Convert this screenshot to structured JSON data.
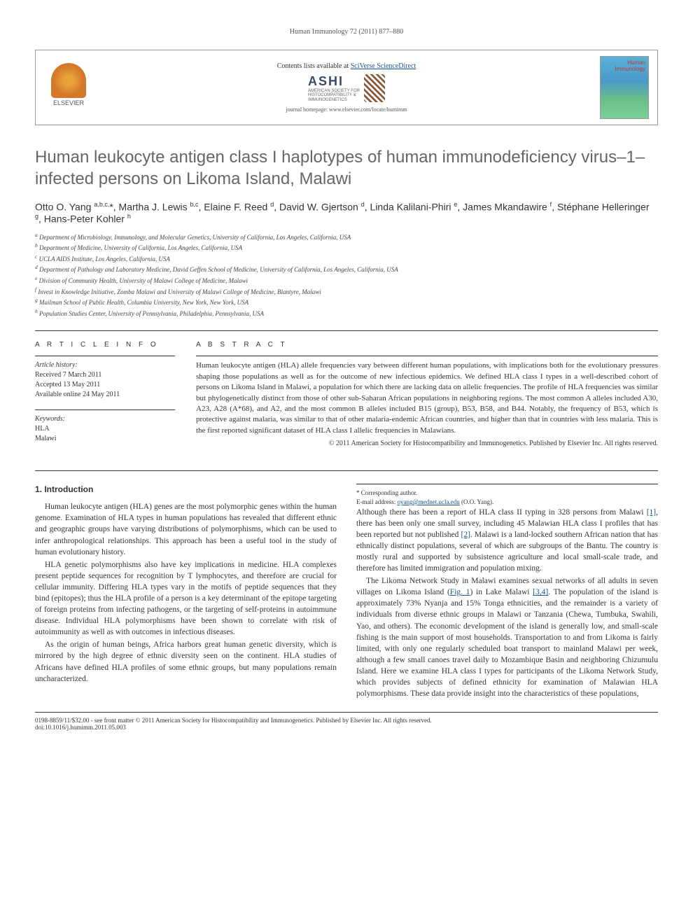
{
  "running_head": "Human Immunology 72 (2011) 877–880",
  "header": {
    "elsevier_label": "ELSEVIER",
    "contents_prefix": "Contents lists available at ",
    "contents_link": "SciVerse ScienceDirect",
    "ashi_name": "ASHI",
    "ashi_sub1": "AMERICAN SOCIETY FOR",
    "ashi_sub2": "HISTOCOMPATIBILITY &",
    "ashi_sub3": "IMMUNOGENETICS",
    "homepage": "journal homepage: www.elsevier.com/locate/humimm",
    "cover_title1": "Human",
    "cover_title2": "Immunology"
  },
  "title": "Human leukocyte antigen class I haplotypes of human immunodeficiency virus–1–infected persons on Likoma Island, Malawi",
  "authors_html": "Otto O. Yang <sup>a,b,c,</sup>*, Martha J. Lewis <sup>b,c</sup>, Elaine F. Reed <sup>d</sup>, David W. Gjertson <sup>d</sup>, Linda Kalilani-Phiri <sup>e</sup>, James Mkandawire <sup>f</sup>, Stéphane Helleringer <sup>g</sup>, Hans-Peter Kohler <sup>h</sup>",
  "affiliations": [
    "a Department of Microbiology, Immunology, and Molecular Genetics, University of California, Los Angeles, California, USA",
    "b Department of Medicine, University of California, Los Angeles, California, USA",
    "c UCLA AIDS Institute, Los Angeles, California, USA",
    "d Department of Pathology and Laboratory Medicine, David Geffen School of Medicine, University of California, Los Angeles, California, USA",
    "e Division of Community Health, University of Malawi College of Medicine, Malawi",
    "f Invest in Knowledge Initiative, Zomba Malawi and University of Malawi College of Medicine, Blantyre, Malawi",
    "g Mailman School of Public Health, Columbia University, New York, New York, USA",
    "h Population Studies Center, University of Pennsylvania, Philadelphia, Pennsylvania, USA"
  ],
  "article_info": {
    "label": "A R T I C L E   I N F O",
    "history_label": "Article history:",
    "received": "Received 7 March 2011",
    "accepted": "Accepted 13 May 2011",
    "online": "Available online 24 May 2011",
    "keywords_label": "Keywords:",
    "kw1": "HLA",
    "kw2": "Malawi"
  },
  "abstract": {
    "label": "A B S T R A C T",
    "text": "Human leukocyte antigen (HLA) allele frequencies vary between different human populations, with implications both for the evolutionary pressures shaping those populations as well as for the outcome of new infectious epidemics. We defined HLA class I types in a well-described cohort of persons on Likoma Island in Malawi, a population for which there are lacking data on allelic frequencies. The profile of HLA frequencies was similar but phylogenetically distinct from those of other sub-Saharan African populations in neighboring regions. The most common A alleles included A30, A23, A28 (A*68), and A2, and the most common B alleles included B15 (group), B53, B58, and B44. Notably, the frequency of B53, which is protective against malaria, was similar to that of other malaria-endemic African countries, and higher than that in countries with less malaria. This is the first reported significant dataset of HLA class I allelic frequencies in Malawians.",
    "copyright": "© 2011 American Society for Histocompatibility and Immunogenetics. Published by Elsevier Inc. All rights reserved."
  },
  "body": {
    "heading1": "1. Introduction",
    "p1": "Human leukocyte antigen (HLA) genes are the most polymorphic genes within the human genome. Examination of HLA types in human populations has revealed that different ethnic and geographic groups have varying distributions of polymorphisms, which can be used to infer anthropological relationships. This approach has been a useful tool in the study of human evolutionary history.",
    "p2": "HLA genetic polymorphisms also have key implications in medicine. HLA complexes present peptide sequences for recognition by T lymphocytes, and therefore are crucial for cellular immunity. Differing HLA types vary in the motifs of peptide sequences that they bind (epitopes); thus the HLA profile of a person is a key determinant of the epitope targeting of foreign proteins from infecting pathogens, or the targeting of self-proteins in autoimmune disease. Individual HLA polymorphisms have been shown to correlate with risk of autoimmunity as well as with outcomes in infectious diseases.",
    "p3": "As the origin of human beings, Africa harbors great human genetic diversity, which is mirrored by the high degree of ethnic diversity seen on the continent. HLA studies of Africans have defined HLA profiles of some ethnic groups, but many populations remain uncharacterized.",
    "p4a": "Although there has been a report of HLA class II typing in 328 persons from Malawi ",
    "ref1": "[1]",
    "p4b": ", there has been only one small survey, including 45 Malawian HLA class I profiles that has been reported but not published ",
    "ref2": "[2]",
    "p4c": ". Malawi is a land-locked southern African nation that has ethnically distinct populations, several of which are subgroups of the Bantu. The country is mostly rural and supported by subsistence agriculture and local small-scale trade, and therefore has limited immigration and population mixing.",
    "p5a": "The Likoma Network Study in Malawi examines sexual networks of all adults in seven villages on Likoma Island (",
    "fig1": "Fig. 1",
    "p5b": ") in Lake Malawi ",
    "ref34": "[3,4]",
    "p5c": ". The population of the island is approximately 73% Nyanja and 15% Tonga ethnicities, and the remainder is a variety of individuals from diverse ethnic groups in Malawi or Tanzania (Chewa, Tumbuka, Swahili, Yao, and others). The economic development of the island is generally low, and small-scale fishing is the main support of most households. Transportation to and from Likoma is fairly limited, with only one regularly scheduled boat transport to mainland Malawi per week, although a few small canoes travel daily to Mozambique Basin and neighboring Chizumulu Island. Here we examine HLA class I types for participants of the Likoma Network Study, which provides subjects of defined ethnicity for examination of Malawian HLA polymorphisms. These data provide insight into the characteristics of these populations,"
  },
  "corresponding": {
    "label": "* Corresponding author.",
    "email_label": "E-mail address: ",
    "email": "oyang@mednet.ucla.edu",
    "email_suffix": " (O.O. Yang)."
  },
  "footer": {
    "line1": "0198-8859/11/$32.00 - see front matter © 2011 American Society for Histocompatibility and Immunogenetics. Published by Elsevier Inc. All rights reserved.",
    "line2": "doi:10.1016/j.humimm.2011.05.003"
  },
  "colors": {
    "title_gray": "#666666",
    "link_blue": "#1a5490",
    "text": "#333333",
    "border": "#333333"
  }
}
